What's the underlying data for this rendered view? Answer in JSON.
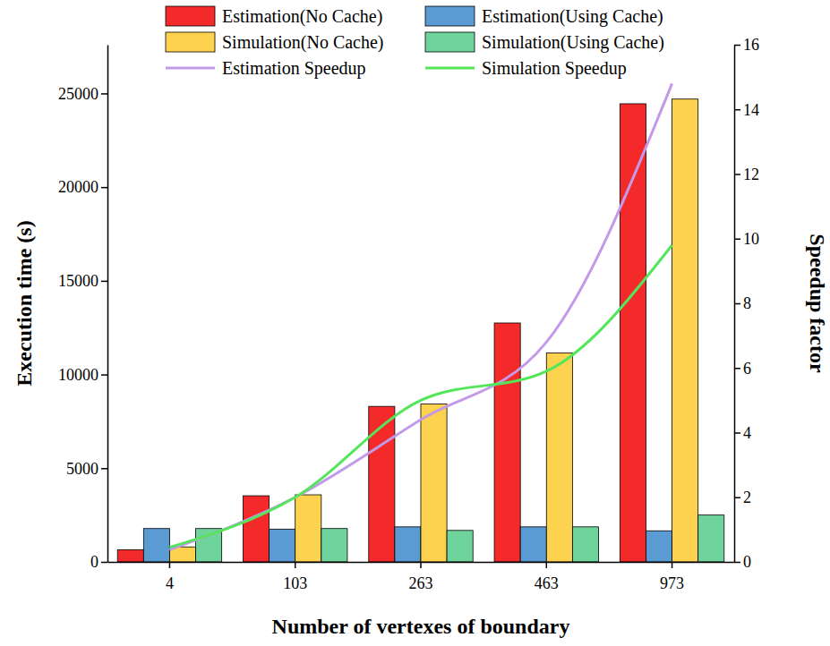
{
  "chart_data": {
    "type": "bar",
    "x_label": "Number of vertexes of boundary",
    "y_label": "Execution time (s)",
    "y2_label": "Speedup factor",
    "categories": [
      "4",
      "103",
      "263",
      "463",
      "973"
    ],
    "ylim": [
      0,
      27600
    ],
    "yticks": [
      0,
      5000,
      10000,
      15000,
      20000,
      25000
    ],
    "y2lim": [
      0,
      16
    ],
    "y2ticks": [
      0,
      2,
      4,
      6,
      8,
      10,
      12,
      14,
      16
    ],
    "legend": "top",
    "grid": false,
    "series": [
      {
        "name": "Estimation(No Cache)",
        "type": "bar",
        "color": "#f42a2a",
        "values": [
          650,
          3530,
          8300,
          12750,
          24450
        ]
      },
      {
        "name": "Estimation(Using Cache)",
        "type": "bar",
        "color": "#5a9bd3",
        "values": [
          1780,
          1750,
          1870,
          1870,
          1660
        ]
      },
      {
        "name": "Simulation(No Cache)",
        "type": "bar",
        "color": "#fdd24e",
        "values": [
          800,
          3580,
          8430,
          11150,
          24700
        ]
      },
      {
        "name": "Simulation(Using Cache)",
        "type": "bar",
        "color": "#6fd49b",
        "values": [
          1780,
          1780,
          1680,
          1870,
          2500
        ]
      },
      {
        "name": "Estimation Speedup",
        "type": "line",
        "axis": "y2",
        "color": "#c39ae8",
        "values": [
          0.37,
          2.0,
          4.4,
          6.8,
          14.8
        ]
      },
      {
        "name": "Simulation Speedup",
        "type": "line",
        "axis": "y2",
        "color": "#54e65a",
        "values": [
          0.45,
          2.0,
          5.0,
          5.9,
          9.8
        ]
      }
    ]
  }
}
